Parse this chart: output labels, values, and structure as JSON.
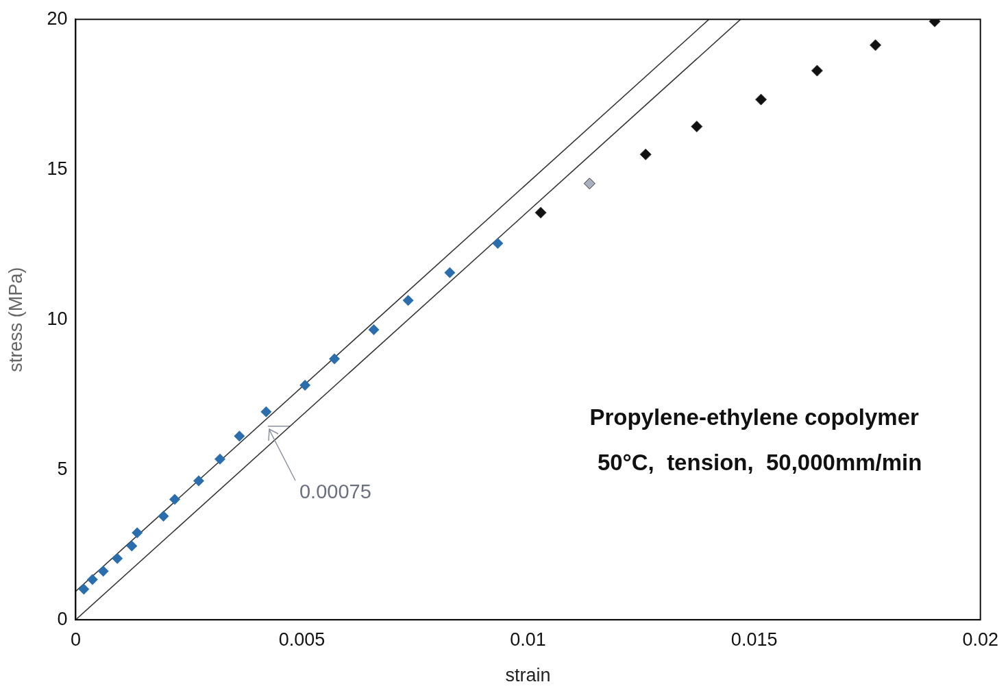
{
  "chart_data": {
    "type": "scatter",
    "xlabel": "strain",
    "ylabel": "stress (MPa)",
    "xlim": [
      0,
      0.02
    ],
    "xticks": [
      0,
      0.005,
      0.01,
      0.015,
      0.02
    ],
    "ylim": [
      0,
      20
    ],
    "yticks": [
      0,
      5,
      10,
      15,
      20
    ],
    "grid": false,
    "legend": false,
    "marker": "diamond",
    "series": [
      {
        "color": "#2a6ead",
        "x": [
          0.00018,
          0.00037,
          0.00061,
          0.00092,
          0.00124,
          0.00136,
          0.00194,
          0.00219,
          0.00272,
          0.00319,
          0.00362,
          0.00421,
          0.00507,
          0.00572,
          0.00659,
          0.00735,
          0.00827,
          0.00933
        ],
        "values": [
          1.02,
          1.34,
          1.62,
          2.04,
          2.46,
          2.9,
          3.45,
          4.01,
          4.63,
          5.35,
          6.12,
          6.93,
          7.81,
          8.69,
          9.66,
          10.64,
          11.56,
          12.54
        ]
      },
      {
        "color": "#111111",
        "colors": [
          "#111111",
          "#aab0c0",
          "#111111",
          "#111111",
          "#111111",
          "#111111",
          "#111111",
          "#111111"
        ],
        "x": [
          0.01028,
          0.01136,
          0.0126,
          0.01373,
          0.01515,
          0.01639,
          0.01768,
          0.01899
        ],
        "values": [
          13.56,
          14.53,
          15.5,
          16.43,
          17.33,
          18.29,
          19.14,
          19.93
        ]
      },
      {
        "type": "line",
        "color": "#333333",
        "marker": "none",
        "x": [
          0,
          0.014
        ],
        "values": [
          0.95,
          20
        ]
      },
      {
        "type": "line",
        "color": "#333333",
        "marker": "none",
        "x": [
          0,
          0.0147
        ],
        "values": [
          0,
          20
        ]
      },
      {
        "type": "line",
        "color": "#8a90a0",
        "marker": "none",
        "x": [
          0.00425,
          0.00475
        ],
        "values": [
          6.45,
          6.45
        ]
      }
    ],
    "annotations": [
      "0.00075",
      "Propylene-ethylene copolymer",
      "50°C,  tension,  50,000mm/min"
    ]
  }
}
